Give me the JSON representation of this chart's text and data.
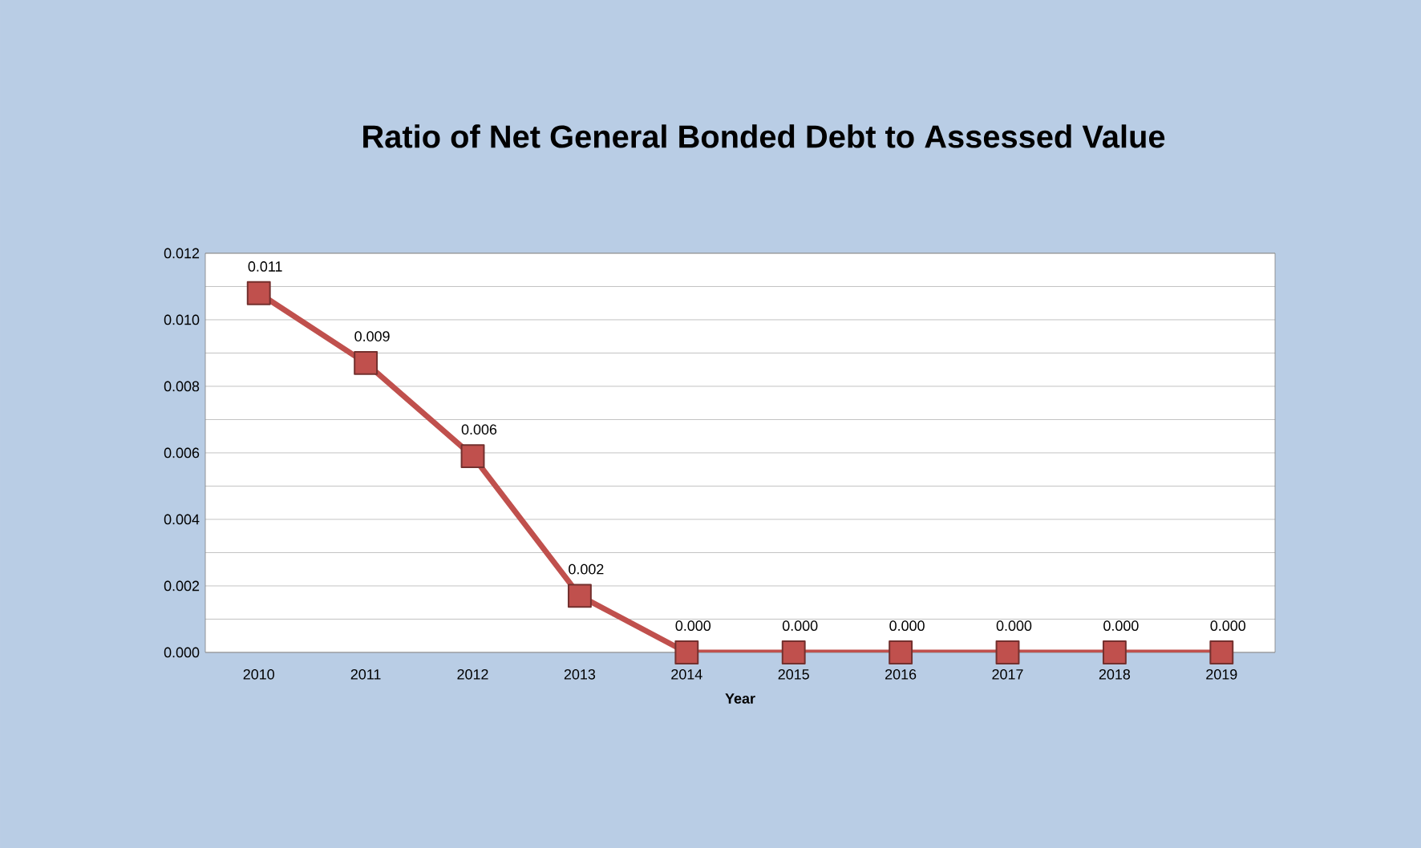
{
  "chart_data": {
    "type": "line",
    "title": "Ratio of Net General Bonded Debt to Assessed Value",
    "xlabel": "Year",
    "categories": [
      "2010",
      "2011",
      "2012",
      "2013",
      "2014",
      "2015",
      "2016",
      "2017",
      "2018",
      "2019"
    ],
    "values": [
      0.0108,
      0.0087,
      0.0059,
      0.0017,
      0,
      0,
      0,
      0,
      0,
      0
    ],
    "value_labels": [
      "0.011",
      "0.009",
      "0.006",
      "0.002",
      "0.000",
      "0.000",
      "0.000",
      "0.000",
      "0.000",
      "0.000"
    ],
    "color": "#c0504d",
    "marker": "square",
    "grid": "y",
    "ylim": [
      0,
      0.012
    ],
    "yticks": [
      {
        "value": 0,
        "label": "0.000"
      },
      {
        "value": 0.001,
        "label": null
      },
      {
        "value": 0.002,
        "label": "0.002"
      },
      {
        "value": 0.003,
        "label": null
      },
      {
        "value": 0.004,
        "label": "0.004"
      },
      {
        "value": 0.005,
        "label": null
      },
      {
        "value": 0.006,
        "label": "0.006"
      },
      {
        "value": 0.007,
        "label": null
      },
      {
        "value": 0.008,
        "label": "0.008"
      },
      {
        "value": 0.009,
        "label": null
      },
      {
        "value": 0.01,
        "label": "0.010"
      },
      {
        "value": 0.011,
        "label": null
      },
      {
        "value": 0.012,
        "label": "0.012"
      }
    ]
  }
}
